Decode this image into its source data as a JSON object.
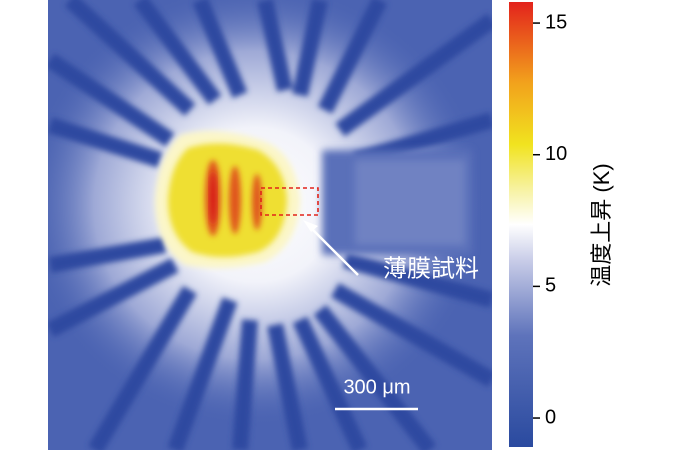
{
  "colorbar": {
    "label": "温度上昇 (K)",
    "lim": [
      -1.1,
      15.8
    ],
    "ticks": [
      0,
      5,
      10,
      15
    ]
  },
  "annotation": "薄膜試料",
  "scale_bar": "300 μm"
}
